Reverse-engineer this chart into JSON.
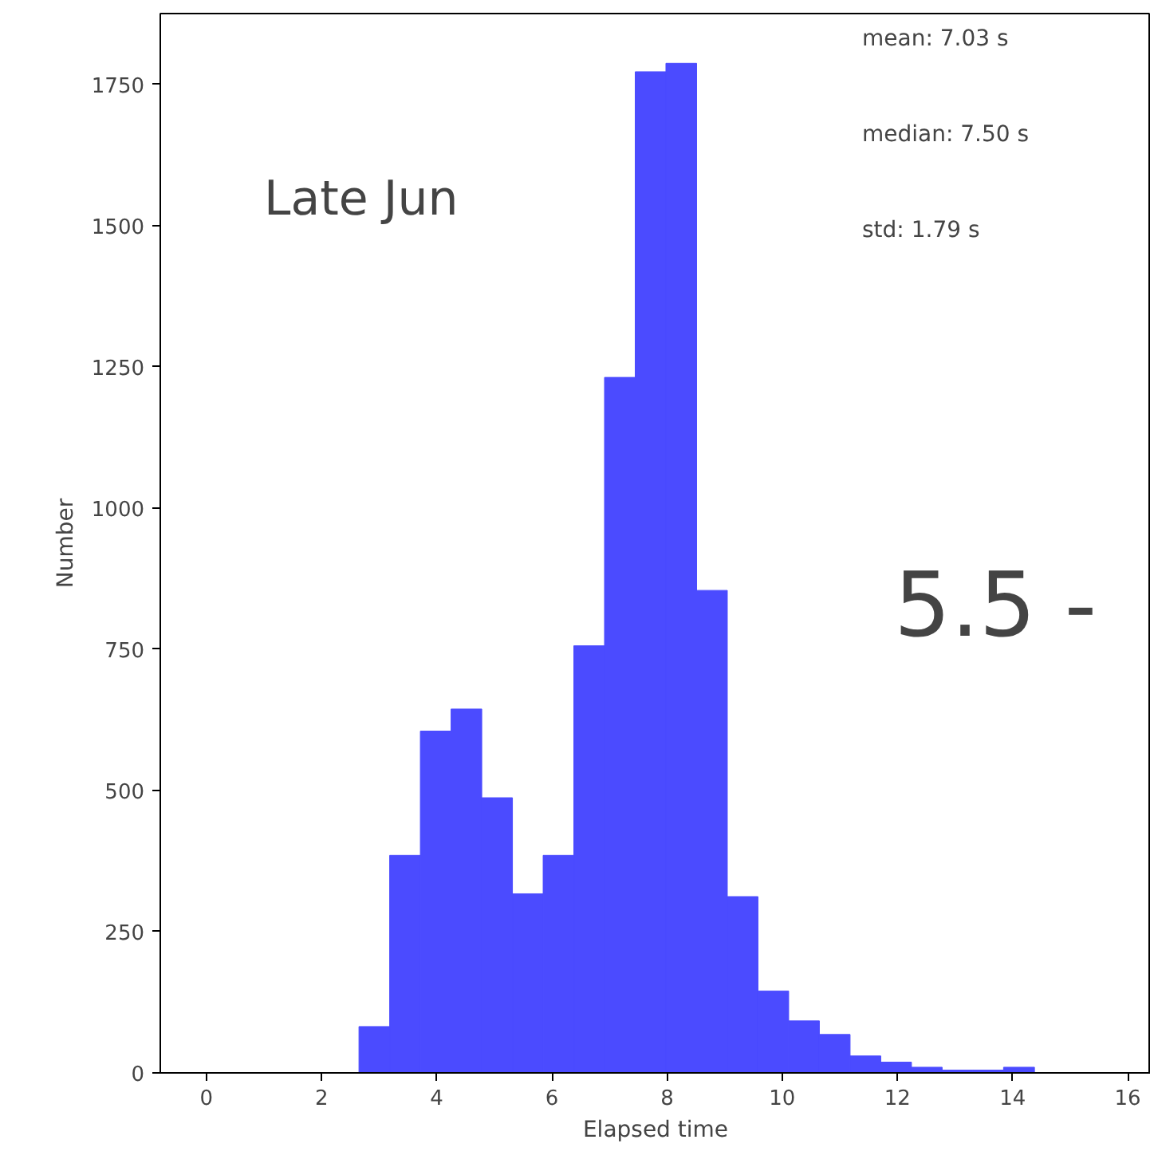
{
  "chart_data": {
    "type": "histogram",
    "xlabel": "Elapsed time",
    "ylabel": "Number",
    "color": "#4b4bff",
    "bins": [
      2.65,
      3.183,
      3.716,
      4.249,
      4.782,
      5.315,
      5.848,
      6.381,
      6.914,
      7.447,
      7.98,
      8.513,
      9.046,
      9.579,
      10.112,
      10.645,
      11.178,
      11.711,
      12.244,
      12.777,
      13.31,
      13.843,
      14.38
    ],
    "values": [
      82,
      385,
      605,
      644,
      487,
      317,
      385,
      756,
      1231,
      1772,
      1787,
      854,
      312,
      145,
      92,
      68,
      30,
      19,
      10,
      5,
      5,
      10
    ],
    "xlim": [
      -0.8,
      16.4
    ],
    "ylim": [
      0,
      1875
    ],
    "xticks": [
      0,
      2,
      4,
      6,
      8,
      10,
      12,
      14,
      16
    ],
    "yticks": [
      0,
      250,
      500,
      750,
      1000,
      1250,
      1500,
      1750
    ],
    "grid": false,
    "annotations": [
      "Late Jun",
      "mean:   7.03 s",
      "median: 7.50 s",
      "std:    1.79 s",
      "5.5 -"
    ]
  }
}
